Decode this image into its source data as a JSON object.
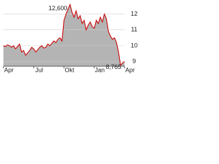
{
  "chart_data": {
    "type": "area-line",
    "categories": [
      "Apr",
      null,
      null,
      null,
      null,
      null,
      null,
      null,
      null,
      null,
      null,
      null,
      null,
      null,
      null,
      "Jul",
      null,
      null,
      null,
      null,
      null,
      null,
      null,
      null,
      null,
      null,
      null,
      null,
      null,
      null,
      "Okt",
      null,
      null,
      null,
      null,
      null,
      null,
      null,
      null,
      null,
      null,
      null,
      null,
      null,
      null,
      "Jan",
      null,
      null,
      null,
      null,
      null,
      null,
      null,
      null,
      null,
      null,
      null,
      null,
      null,
      null,
      "Apr"
    ],
    "values": [
      10.0,
      9.95,
      10.05,
      10.0,
      9.9,
      10.0,
      9.8,
      9.95,
      10.1,
      9.6,
      9.7,
      9.4,
      9.55,
      9.7,
      9.9,
      9.8,
      9.6,
      9.75,
      9.9,
      10.0,
      9.85,
      9.9,
      10.1,
      10.0,
      10.15,
      10.3,
      10.2,
      10.4,
      10.5,
      10.3,
      11.6,
      12.0,
      12.3,
      12.6,
      12.1,
      11.8,
      12.2,
      11.7,
      11.9,
      11.4,
      11.6,
      11.0,
      11.3,
      11.5,
      11.2,
      11.1,
      11.6,
      11.4,
      11.8,
      11.5,
      12.0,
      11.7,
      10.9,
      10.6,
      10.4,
      10.5,
      10.2,
      9.6,
      8.765,
      8.9,
      9.0
    ],
    "max_label": "12,600",
    "min_label": "8,765",
    "color": "#cc0000",
    "fill": "#b4b4b4",
    "ylim": [
      8.7,
      12.8
    ],
    "yticks": [
      9,
      10,
      11,
      12
    ],
    "grid": true
  }
}
